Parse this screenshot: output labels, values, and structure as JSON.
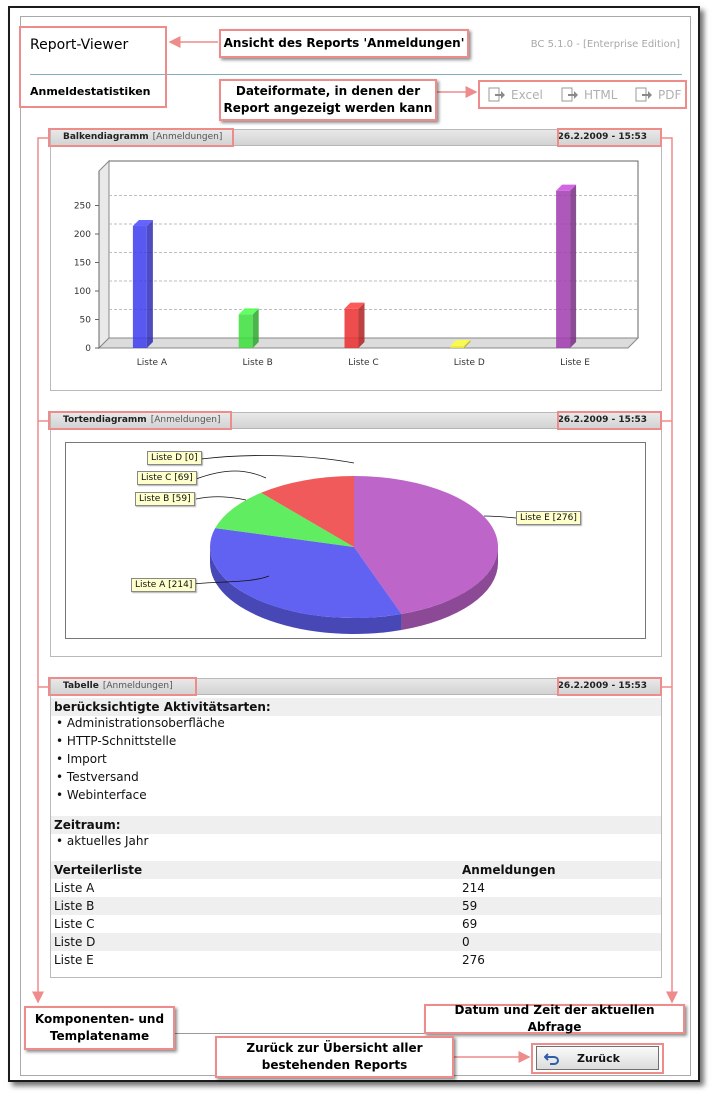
{
  "header": {
    "app_title": "Report-Viewer",
    "report_title": "Anmeldestatistiken",
    "version": "BC 5.1.0 - [Enterprise Edition]"
  },
  "formats": [
    {
      "label": "Excel",
      "icon": "export-icon"
    },
    {
      "label": "HTML",
      "icon": "export-icon"
    },
    {
      "label": "PDF",
      "icon": "export-icon"
    }
  ],
  "callouts": {
    "view": "Ansicht des Reports 'Anmeldungen'",
    "formats_line1": "Dateiformate, in denen der",
    "formats_line2": "Report angezeigt werden kann",
    "component_line1": "Komponenten- und",
    "component_line2": "Templatename",
    "datetime": "Datum und Zeit der aktuellen Abfrage",
    "back_line1": "Zurück zur Übersicht aller",
    "back_line2": "bestehenden Reports"
  },
  "sections": {
    "bar": {
      "name": "Balkendiagramm",
      "sub": "[Anmeldungen]",
      "date": "26.2.2009 - 15:53"
    },
    "pie": {
      "name": "Tortendiagramm",
      "sub": "[Anmeldungen]",
      "date": "26.2.2009 - 15:53"
    },
    "table": {
      "name": "Tabelle",
      "sub": "[Anmeldungen]",
      "date": "26.2.2009 - 15:53"
    }
  },
  "chart_data": [
    {
      "type": "bar",
      "categories": [
        "Liste A",
        "Liste B",
        "Liste C",
        "Liste D",
        "Liste E"
      ],
      "values": [
        214,
        59,
        69,
        0,
        276
      ],
      "colors": [
        "#3d3df0",
        "#3be03b",
        "#ec2f2f",
        "#eded30",
        "#a23cb0"
      ],
      "yticks": [
        0,
        50,
        100,
        150,
        200,
        250
      ],
      "ylim": [
        0,
        300
      ],
      "grid": true
    },
    {
      "type": "pie",
      "labels": [
        "Liste A [214]",
        "Liste B [59]",
        "Liste C [69]",
        "Liste D [0]",
        "Liste E [276]"
      ],
      "values": [
        214,
        59,
        69,
        0,
        276
      ],
      "colors": [
        "#4747f0",
        "#45ea45",
        "#ef3d3d",
        "#eded30",
        "#b24ac0"
      ]
    }
  ],
  "table": {
    "activities_title": "berücksichtigte Aktivitätsarten:",
    "activities": [
      "Administrationsoberfläche",
      "HTTP-Schnittstelle",
      "Import",
      "Testversand",
      "Webinterface"
    ],
    "period_title": "Zeitraum:",
    "period": [
      "aktuelles Jahr"
    ],
    "col_list": "Verteilerliste",
    "col_count": "Anmeldungen",
    "rows": [
      {
        "list": "Liste A",
        "count": "214"
      },
      {
        "list": "Liste B",
        "count": "59"
      },
      {
        "list": "Liste C",
        "count": "69"
      },
      {
        "list": "Liste D",
        "count": "0"
      },
      {
        "list": "Liste E",
        "count": "276"
      }
    ]
  },
  "back_button": "Zurück"
}
